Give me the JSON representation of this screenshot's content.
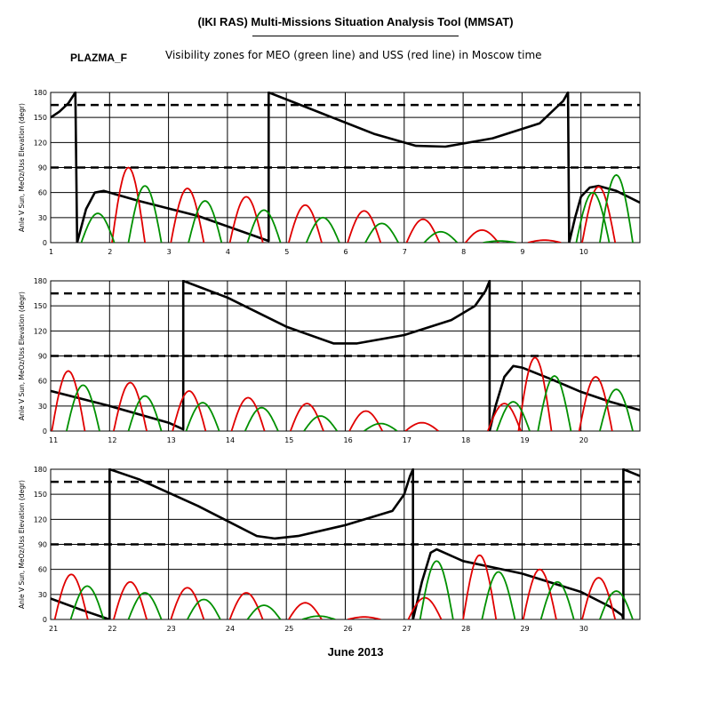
{
  "header": {
    "title": "(IKI RAS) Multi-Missions Situation Analysis Tool (MMSAT)",
    "program": "PLAZMA_F",
    "subtitle": "Visibility zones for MEO (green line) and USS (red line) in Moscow time",
    "x_caption": "June 2013"
  },
  "chart_data": [
    {
      "type": "line",
      "title": "",
      "ylabel": "Anle V Sun, MeOz/Uss Elevation (degr)",
      "xlabel": "",
      "xlim": [
        1,
        11
      ],
      "ylim": [
        0,
        180
      ],
      "x_ticks": [
        1,
        2,
        3,
        4,
        5,
        6,
        7,
        8,
        9,
        10
      ],
      "y_ticks": [
        0,
        30,
        60,
        90,
        120,
        150,
        180
      ],
      "reference_lines_dashed": [
        90,
        165
      ],
      "grid": true,
      "series": [
        {
          "color": "#000000",
          "points": [
            [
              1.0,
              150
            ],
            [
              1.15,
              157
            ],
            [
              1.3,
              167
            ],
            [
              1.42,
              180
            ],
            [
              1.45,
              0
            ],
            [
              1.6,
              40
            ],
            [
              1.75,
              60
            ],
            [
              1.9,
              62
            ],
            [
              2.5,
              50
            ],
            [
              3.5,
              32
            ],
            [
              4.7,
              2
            ],
            [
              4.7,
              180
            ],
            [
              5.6,
              155
            ],
            [
              6.5,
              130
            ],
            [
              7.2,
              116
            ],
            [
              7.7,
              115
            ],
            [
              8.5,
              125
            ],
            [
              9.3,
              143
            ],
            [
              9.7,
              170
            ],
            [
              9.78,
              180
            ],
            [
              9.8,
              0
            ],
            [
              9.9,
              30
            ],
            [
              10.0,
              55
            ],
            [
              10.15,
              66
            ],
            [
              10.3,
              68
            ],
            [
              10.6,
              62
            ],
            [
              11.0,
              48
            ]
          ]
        },
        {
          "color": "#e00000",
          "peaks": [
            [
              2.32,
              90
            ],
            [
              3.32,
              65
            ],
            [
              4.32,
              55
            ],
            [
              5.32,
              45
            ],
            [
              6.32,
              38
            ],
            [
              7.32,
              28
            ],
            [
              8.32,
              15
            ],
            [
              9.38,
              3
            ],
            [
              10.3,
              67
            ]
          ],
          "half_width": 0.28
        },
        {
          "color": "#009000",
          "peaks": [
            [
              1.8,
              35
            ],
            [
              2.6,
              68
            ],
            [
              3.62,
              50
            ],
            [
              4.62,
              39
            ],
            [
              5.62,
              30
            ],
            [
              6.62,
              23
            ],
            [
              7.62,
              13
            ],
            [
              8.62,
              2
            ],
            [
              10.2,
              60
            ],
            [
              10.6,
              81
            ]
          ],
          "half_width": 0.28
        }
      ]
    },
    {
      "type": "line",
      "title": "",
      "ylabel": "Anle V Sun, MeOz/Uss Elevation (degr)",
      "xlabel": "",
      "xlim": [
        11,
        21
      ],
      "ylim": [
        0,
        180
      ],
      "x_ticks": [
        11,
        12,
        13,
        14,
        15,
        16,
        17,
        18,
        19,
        20
      ],
      "y_ticks": [
        0,
        30,
        60,
        90,
        120,
        150,
        180
      ],
      "reference_lines_dashed": [
        90,
        165
      ],
      "grid": true,
      "series": [
        {
          "color": "#000000",
          "points": [
            [
              11.0,
              48
            ],
            [
              12.0,
              30
            ],
            [
              13.0,
              10
            ],
            [
              13.25,
              2
            ],
            [
              13.25,
              180
            ],
            [
              14.0,
              160
            ],
            [
              15.0,
              125
            ],
            [
              15.8,
              105
            ],
            [
              16.2,
              105
            ],
            [
              17.0,
              115
            ],
            [
              17.8,
              133
            ],
            [
              18.2,
              150
            ],
            [
              18.38,
              168
            ],
            [
              18.45,
              180
            ],
            [
              18.45,
              0
            ],
            [
              18.55,
              30
            ],
            [
              18.7,
              65
            ],
            [
              18.85,
              78
            ],
            [
              19.0,
              76
            ],
            [
              19.5,
              62
            ],
            [
              20.0,
              47
            ],
            [
              20.5,
              35
            ],
            [
              21.0,
              25
            ]
          ]
        },
        {
          "color": "#e00000",
          "peaks": [
            [
              11.3,
              72
            ],
            [
              12.35,
              58
            ],
            [
              13.35,
              48
            ],
            [
              14.35,
              40
            ],
            [
              15.35,
              33
            ],
            [
              16.35,
              24
            ],
            [
              17.3,
              10
            ],
            [
              18.7,
              33
            ],
            [
              19.22,
              88
            ],
            [
              20.25,
              65
            ]
          ],
          "half_width": 0.28
        },
        {
          "color": "#009000",
          "peaks": [
            [
              11.55,
              55
            ],
            [
              12.6,
              42
            ],
            [
              13.58,
              34
            ],
            [
              14.58,
              28
            ],
            [
              15.58,
              18
            ],
            [
              16.6,
              9
            ],
            [
              18.85,
              35
            ],
            [
              19.55,
              66
            ],
            [
              20.6,
              50
            ]
          ],
          "half_width": 0.28
        }
      ]
    },
    {
      "type": "line",
      "title": "",
      "ylabel": "Anle V Sun, MeOz/Uss Elevation (degr)",
      "xlabel": "",
      "xlim": [
        21,
        31
      ],
      "ylim": [
        0,
        180
      ],
      "x_ticks": [
        21,
        22,
        23,
        24,
        25,
        26,
        27,
        28,
        29,
        30
      ],
      "y_ticks": [
        0,
        30,
        60,
        90,
        120,
        150,
        180
      ],
      "reference_lines_dashed": [
        90,
        165
      ],
      "grid": true,
      "series": [
        {
          "color": "#000000",
          "points": [
            [
              21.0,
              25
            ],
            [
              21.5,
              12
            ],
            [
              22.0,
              0
            ],
            [
              22.0,
              180
            ],
            [
              22.5,
              168
            ],
            [
              23.5,
              136
            ],
            [
              24.5,
              100
            ],
            [
              24.8,
              97
            ],
            [
              25.2,
              100
            ],
            [
              26.0,
              113
            ],
            [
              26.8,
              130
            ],
            [
              27.0,
              150
            ],
            [
              27.1,
              172
            ],
            [
              27.15,
              180
            ],
            [
              27.15,
              0
            ],
            [
              27.3,
              45
            ],
            [
              27.45,
              80
            ],
            [
              27.55,
              84
            ],
            [
              28.0,
              70
            ],
            [
              29.0,
              55
            ],
            [
              30.0,
              33
            ],
            [
              30.5,
              15
            ],
            [
              30.7,
              5
            ],
            [
              30.72,
              0
            ],
            [
              30.72,
              180
            ],
            [
              31.0,
              172
            ]
          ]
        },
        {
          "color": "#e00000",
          "peaks": [
            [
              21.35,
              54
            ],
            [
              22.35,
              45
            ],
            [
              23.32,
              38
            ],
            [
              24.32,
              32
            ],
            [
              25.32,
              20
            ],
            [
              26.32,
              3
            ],
            [
              27.35,
              26
            ],
            [
              28.28,
              77
            ],
            [
              29.3,
              60
            ],
            [
              30.3,
              50
            ]
          ],
          "half_width": 0.28
        },
        {
          "color": "#009000",
          "peaks": [
            [
              21.62,
              40
            ],
            [
              22.6,
              32
            ],
            [
              23.6,
              24
            ],
            [
              24.62,
              17
            ],
            [
              25.55,
              4
            ],
            [
              27.55,
              70
            ],
            [
              28.6,
              57
            ],
            [
              29.6,
              45
            ],
            [
              30.6,
              34
            ]
          ],
          "half_width": 0.28
        }
      ]
    }
  ]
}
